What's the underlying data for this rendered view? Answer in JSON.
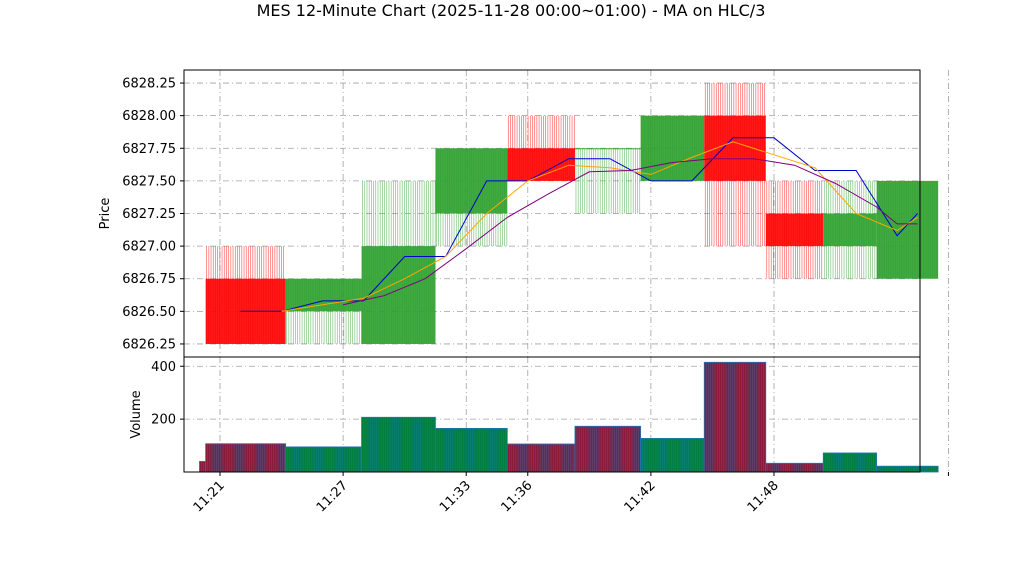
{
  "title": "MES 12-Minute Chart (2025-11-28 00:00~01:00) - MA on HLC/3",
  "colors": {
    "up": "#2ca02c",
    "down": "#ff0000",
    "ma_blue": "#0000cc",
    "ma_orange": "#ffa500",
    "ma_purple": "#800080",
    "vol_up_fill": "#008040",
    "vol_down_fill": "#8b1a3a",
    "vol_edge": "#1f77b4",
    "grid": "#a0a0a0"
  },
  "chart_data": [
    {
      "type": "candlestick",
      "ylabel": "Price",
      "ylim": [
        6826.15,
        6828.35
      ],
      "yticks": [
        "6826.25",
        "6826.50",
        "6826.75",
        "6827.00",
        "6827.25",
        "6827.50",
        "6827.75",
        "6828.00",
        "6828.25"
      ],
      "x_time_range": [
        "11:20",
        "11:53"
      ],
      "xticks": [
        "11:21",
        "11:27",
        "11:33",
        "11:36",
        "11:42",
        "11:48"
      ],
      "grid": true,
      "candles": [
        {
          "start": "11:20.3",
          "end": "11:24.2",
          "open": 6826.75,
          "high": 6827.0,
          "low": 6826.25,
          "close": 6826.25
        },
        {
          "start": "11:24.2",
          "end": "11:27.9",
          "open": 6826.5,
          "high": 6826.75,
          "low": 6826.25,
          "close": 6826.75
        },
        {
          "start": "11:27.9",
          "end": "11:31.5",
          "open": 6826.25,
          "high": 6827.5,
          "low": 6826.25,
          "close": 6827.0
        },
        {
          "start": "11:31.5",
          "end": "11:35.0",
          "open": 6827.25,
          "high": 6827.75,
          "low": 6827.0,
          "close": 6827.75
        },
        {
          "start": "11:35.0",
          "end": "11:38.3",
          "open": 6827.75,
          "high": 6828.0,
          "low": 6827.5,
          "close": 6827.5
        },
        {
          "start": "11:38.3",
          "end": "11:41.5",
          "open": 6827.75,
          "high": 6827.75,
          "low": 6827.25,
          "close": 6827.75
        },
        {
          "start": "11:41.5",
          "end": "11:44.6",
          "open": 6827.5,
          "high": 6828.0,
          "low": 6827.5,
          "close": 6828.0
        },
        {
          "start": "11:44.6",
          "end": "11:47.6",
          "open": 6828.0,
          "high": 6828.25,
          "low": 6827.0,
          "close": 6827.5
        },
        {
          "start": "11:47.6",
          "end": "11:50.4",
          "open": 6827.25,
          "high": 6827.5,
          "low": 6826.75,
          "close": 6827.0
        },
        {
          "start": "11:50.4",
          "end": "11:53.0",
          "open": 6827.0,
          "high": 6827.5,
          "low": 6826.75,
          "close": 6827.25
        },
        {
          "start": "11:53.0",
          "end": "11:56.0",
          "open": 6826.75,
          "high": 6827.5,
          "low": 6826.75,
          "close": 6827.5
        }
      ],
      "series": [
        {
          "color": "ma_blue",
          "x": [
            "11:22.0",
            "11:24.0",
            "11:26.0",
            "11:28.0",
            "11:30.0",
            "11:32.0",
            "11:34.0",
            "11:36.0",
            "11:38.0",
            "11:40.0",
            "11:42.0",
            "11:44.0",
            "11:46.0",
            "11:48.0",
            "11:50.0",
            "11:52.0",
            "11:54.0",
            "11:55.0"
          ],
          "values": [
            6826.5,
            6826.5,
            6826.58,
            6826.58,
            6826.92,
            6826.92,
            6827.5,
            6827.5,
            6827.67,
            6827.67,
            6827.5,
            6827.5,
            6827.83,
            6827.83,
            6827.58,
            6827.58,
            6827.08,
            6827.25
          ]
        },
        {
          "color": "ma_orange",
          "x": [
            "11:24.0",
            "11:26.0",
            "11:28.0",
            "11:30.0",
            "11:32.0",
            "11:34.0",
            "11:36.0",
            "11:38.0",
            "11:40.0",
            "11:42.0",
            "11:44.0",
            "11:46.0",
            "11:48.0",
            "11:50.0",
            "11:52.0",
            "11:54.0",
            "11:55.0"
          ],
          "values": [
            6826.5,
            6826.55,
            6826.6,
            6826.75,
            6826.92,
            6827.25,
            6827.5,
            6827.62,
            6827.6,
            6827.55,
            6827.68,
            6827.8,
            6827.7,
            6827.6,
            6827.25,
            6827.12,
            6827.22
          ]
        },
        {
          "color": "ma_purple",
          "x": [
            "11:27.0",
            "11:29.0",
            "11:31.0",
            "11:33.0",
            "11:35.0",
            "11:37.0",
            "11:39.0",
            "11:41.0",
            "11:43.0",
            "11:45.0",
            "11:47.0",
            "11:49.0",
            "11:51.0",
            "11:53.0",
            "11:54.0",
            "11:55.0"
          ],
          "values": [
            6826.55,
            6826.62,
            6826.75,
            6826.98,
            6827.22,
            6827.4,
            6827.57,
            6827.58,
            6827.64,
            6827.67,
            6827.67,
            6827.62,
            6827.48,
            6827.3,
            6827.17,
            6827.17
          ]
        }
      ]
    },
    {
      "type": "bar",
      "ylabel": "Volume",
      "ylim": [
        0,
        435
      ],
      "yticks": [
        "200",
        "400"
      ],
      "bars": [
        {
          "start": "11:20.0",
          "end": "11:20.3",
          "value": 40,
          "dir": "down"
        },
        {
          "start": "11:20.3",
          "end": "11:24.2",
          "value": 107,
          "dir": "down"
        },
        {
          "start": "11:24.2",
          "end": "11:27.9",
          "value": 95,
          "dir": "up"
        },
        {
          "start": "11:27.9",
          "end": "11:31.5",
          "value": 207,
          "dir": "up"
        },
        {
          "start": "11:31.5",
          "end": "11:35.0",
          "value": 165,
          "dir": "up"
        },
        {
          "start": "11:35.0",
          "end": "11:38.3",
          "value": 106,
          "dir": "down"
        },
        {
          "start": "11:38.3",
          "end": "11:41.5",
          "value": 173,
          "dir": "down"
        },
        {
          "start": "11:41.5",
          "end": "11:44.6",
          "value": 127,
          "dir": "up"
        },
        {
          "start": "11:44.6",
          "end": "11:47.6",
          "value": 415,
          "dir": "down"
        },
        {
          "start": "11:47.6",
          "end": "11:50.4",
          "value": 33,
          "dir": "down"
        },
        {
          "start": "11:50.4",
          "end": "11:53.0",
          "value": 72,
          "dir": "up"
        },
        {
          "start": "11:53.0",
          "end": "11:56.0",
          "value": 22,
          "dir": "up"
        }
      ]
    }
  ]
}
